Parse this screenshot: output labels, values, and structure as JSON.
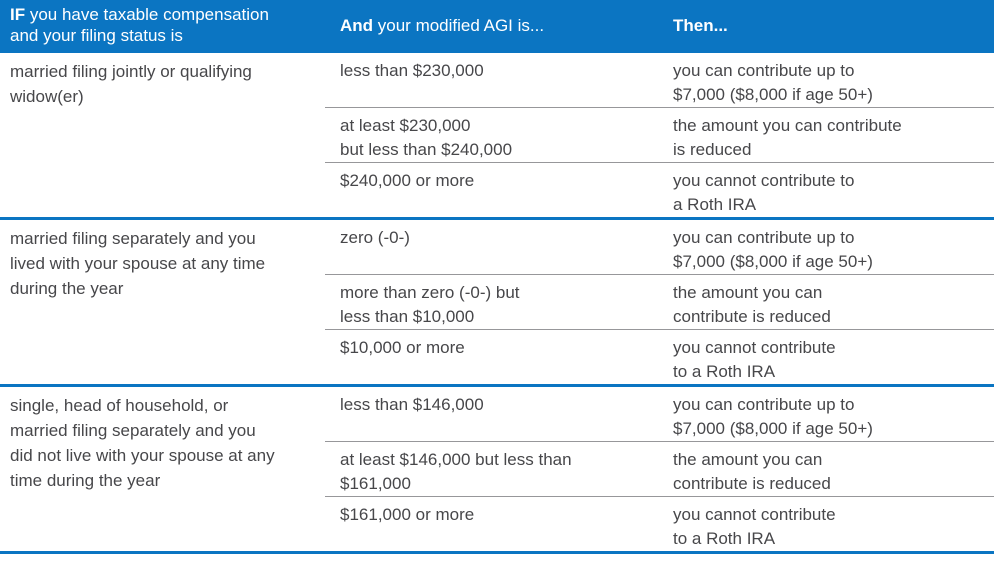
{
  "colors": {
    "header_blue": "#0b75c2",
    "text_gray": "#47474a",
    "divider_gray": "#97979a"
  },
  "header": {
    "col1_bold": "IF",
    "col1_rest": " you have taxable compensation\nand your filing status is",
    "col2_bold": "And",
    "col2_rest": " your modified AGI is...",
    "col3_bold": "Then...",
    "col3_rest": ""
  },
  "groups": [
    {
      "status": "married filing jointly or qualifying\nwidow(er)",
      "rows": [
        {
          "agi": "less than $230,000",
          "then": "you can contribute up to\n$7,000 ($8,000 if age 50+)"
        },
        {
          "agi": "at least $230,000\nbut less than $240,000",
          "then": "the amount you can contribute\nis reduced"
        },
        {
          "agi": "$240,000 or more",
          "then": "you cannot contribute to\na Roth IRA"
        }
      ]
    },
    {
      "status": "married filing separately and you\nlived with your spouse at any time\nduring the year",
      "rows": [
        {
          "agi": "zero (-0-)",
          "then": "you can contribute up to\n$7,000 ($8,000 if age 50+)"
        },
        {
          "agi": "more than zero (-0-) but\nless than $10,000",
          "then": "the amount you can\ncontribute is reduced"
        },
        {
          "agi": "$10,000 or more",
          "then": "you cannot contribute\nto a Roth IRA"
        }
      ]
    },
    {
      "status": "single, head of household, or\nmarried filing separately and you\ndid not live with your spouse at any\ntime during the year",
      "rows": [
        {
          "agi": "less than $146,000",
          "then": "you can contribute up to\n$7,000 ($8,000 if age 50+)"
        },
        {
          "agi": "at least $146,000 but less than\n$161,000",
          "then": "the amount you can\ncontribute is reduced"
        },
        {
          "agi": "$161,000 or more",
          "then": "you cannot contribute\nto a Roth IRA"
        }
      ]
    }
  ]
}
